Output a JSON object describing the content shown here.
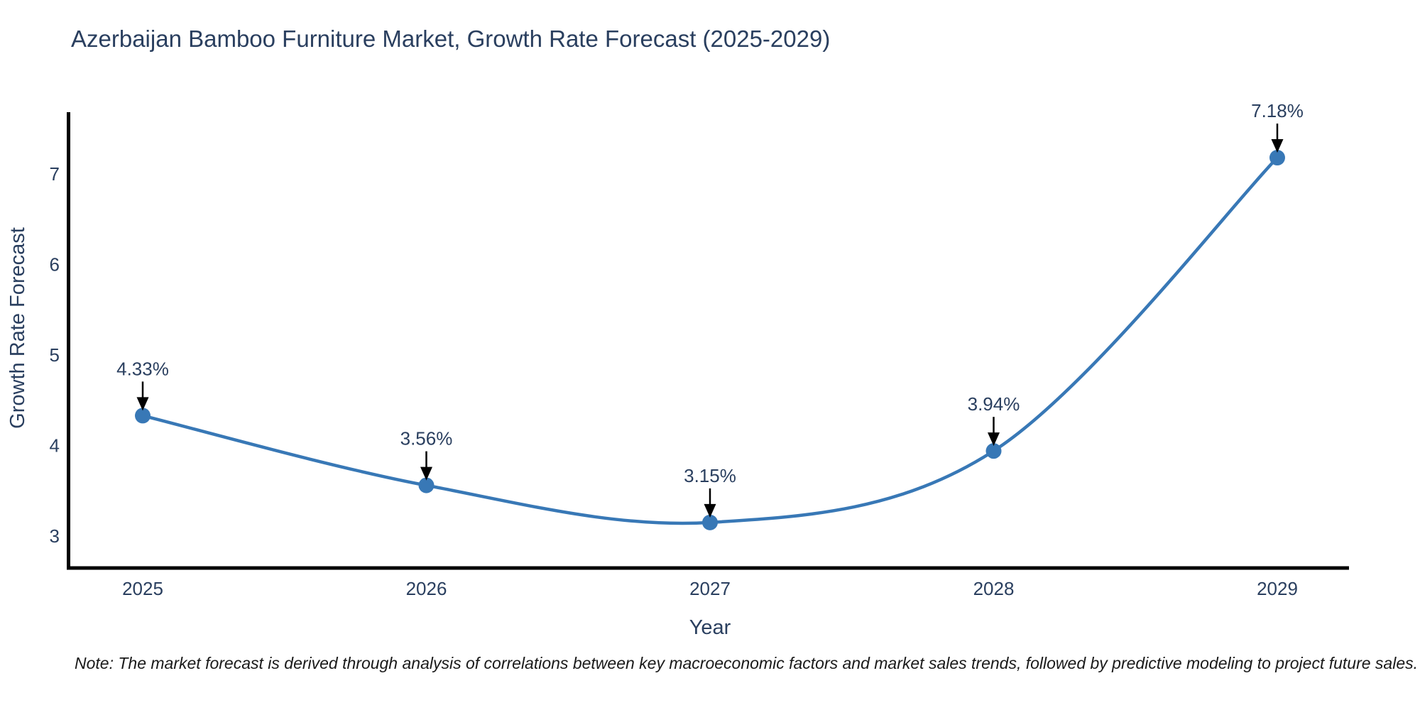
{
  "chart_data": {
    "type": "line",
    "title": "Azerbaijan Bamboo Furniture Market, Growth Rate Forecast (2025-2029)",
    "xlabel": "Year",
    "ylabel": "Growth Rate Forecast",
    "categories": [
      "2025",
      "2026",
      "2027",
      "2028",
      "2029"
    ],
    "values": [
      4.33,
      3.56,
      3.15,
      3.94,
      7.18
    ],
    "point_labels": [
      "4.33%",
      "3.56%",
      "3.15%",
      "3.94%",
      "7.18%"
    ],
    "yticks": [
      3,
      4,
      5,
      6,
      7
    ],
    "ylim": [
      2.65,
      7.65
    ],
    "line_shape": "spline",
    "grid": false,
    "legend": "none",
    "line_color": "#3878b6",
    "marker_color": "#3878b6",
    "axis_line_color": "#000000",
    "arrow_color": "#000000",
    "text_color": "#2a3f5f"
  },
  "note": "Note: The market forecast is derived through analysis of correlations between key macroeconomic factors and market sales trends, followed by predictive modeling to project future sales."
}
